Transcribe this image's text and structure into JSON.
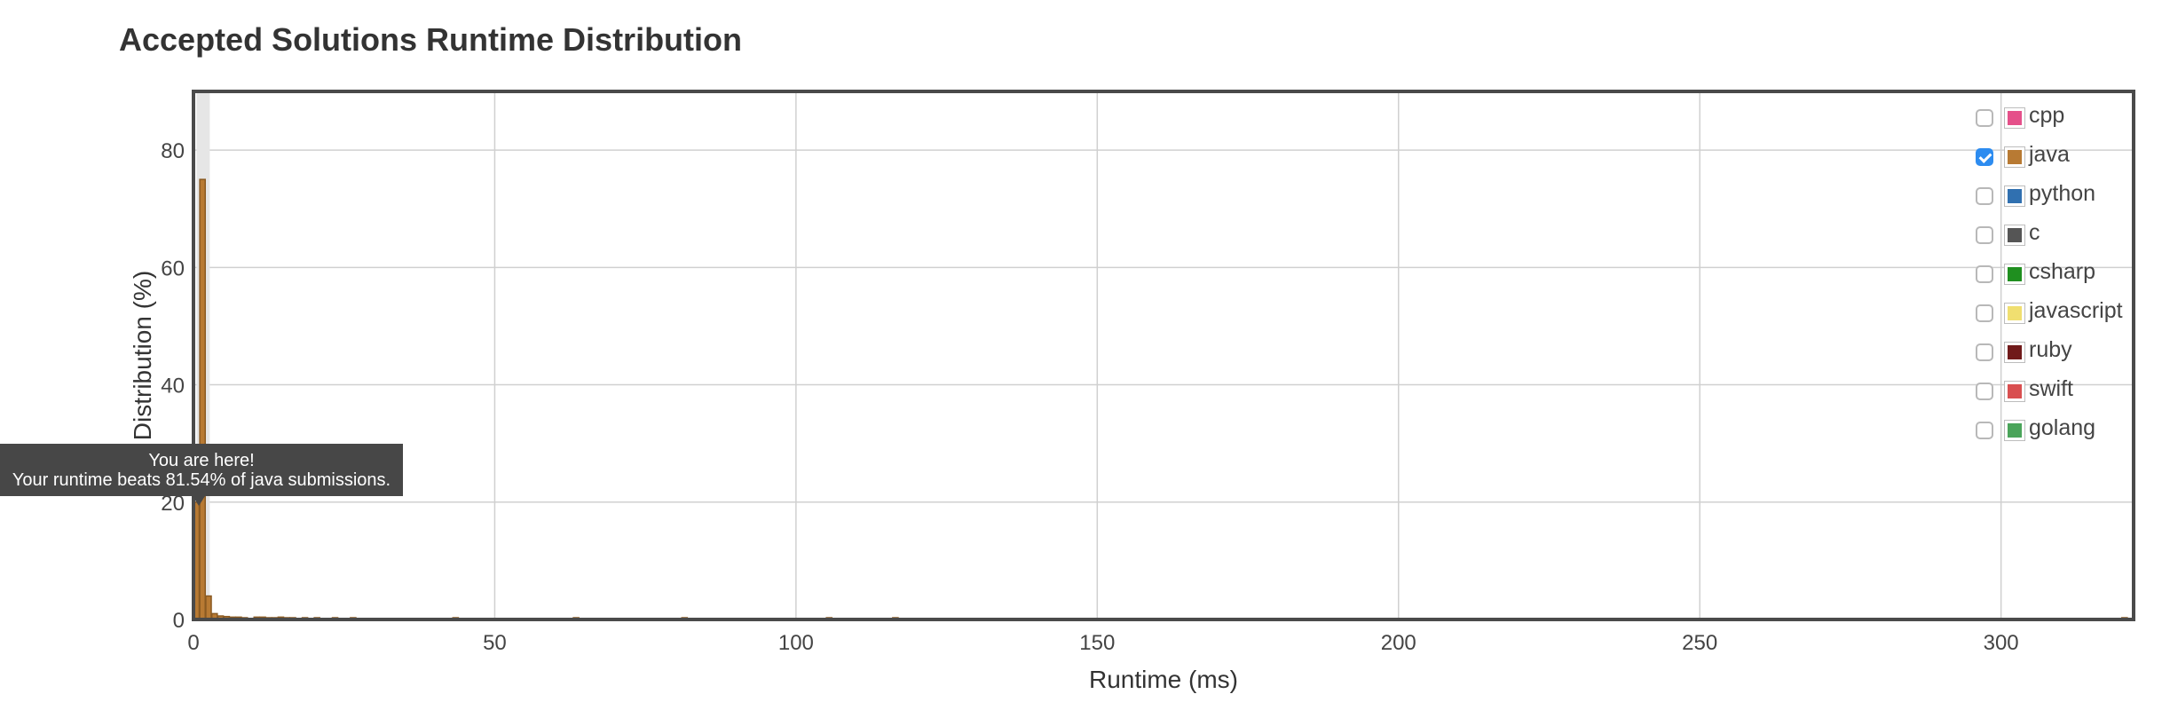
{
  "title": "Accepted Solutions Runtime Distribution",
  "chart_data": {
    "type": "bar",
    "title": "Accepted Solutions Runtime Distribution",
    "xlabel": "Runtime (ms)",
    "ylabel": "Distribution (%)",
    "xlim": [
      0,
      322
    ],
    "ylim": [
      0,
      90
    ],
    "xticks": [
      0,
      50,
      100,
      150,
      200,
      250,
      300
    ],
    "yticks": [
      0,
      20,
      40,
      60,
      80
    ],
    "grid": true,
    "legend_placement": "top-right",
    "highlight_x": 1,
    "series": [
      {
        "name": "java",
        "color": "#b87a33",
        "x": [
          0,
          1,
          2,
          3,
          4,
          5,
          6,
          7,
          8,
          10,
          11,
          12,
          13,
          14,
          15,
          16,
          18,
          20,
          23,
          26,
          43,
          63,
          81,
          105,
          116,
          320
        ],
        "values": [
          20,
          75,
          4,
          1,
          0.6,
          0.5,
          0.4,
          0.4,
          0.3,
          0.4,
          0.4,
          0.3,
          0.3,
          0.4,
          0.3,
          0.3,
          0.3,
          0.3,
          0.3,
          0.3,
          0.3,
          0.3,
          0.3,
          0.3,
          0.3,
          0.3
        ]
      }
    ],
    "legend": [
      {
        "name": "cpp",
        "color": "#e5508a",
        "checked": false
      },
      {
        "name": "java",
        "color": "#b87a33",
        "checked": true
      },
      {
        "name": "python",
        "color": "#3070b0",
        "checked": false
      },
      {
        "name": "c",
        "color": "#555555",
        "checked": false
      },
      {
        "name": "csharp",
        "color": "#1f8f1f",
        "checked": false
      },
      {
        "name": "javascript",
        "color": "#f0df70",
        "checked": false
      },
      {
        "name": "ruby",
        "color": "#701a1a",
        "checked": false
      },
      {
        "name": "swift",
        "color": "#d94f50",
        "checked": false
      },
      {
        "name": "golang",
        "color": "#4aa45a",
        "checked": false
      }
    ]
  },
  "tooltip": {
    "line1": "You are here!",
    "line2": "Your runtime beats 81.54% of java submissions."
  }
}
